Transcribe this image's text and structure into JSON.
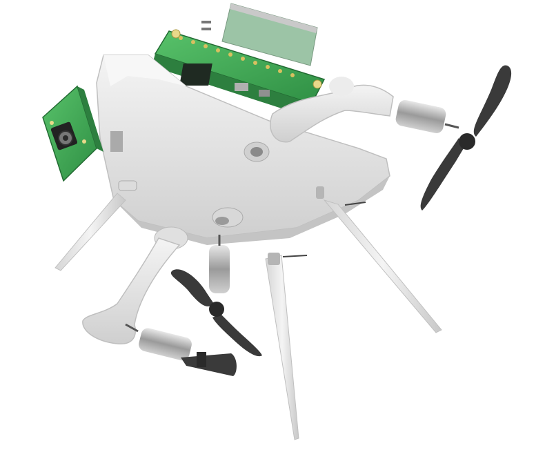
{
  "scene": {
    "subject": "exploded-drone-assembly",
    "components": [
      {
        "id": "main-body",
        "kind": "housing"
      },
      {
        "id": "pi-board",
        "kind": "circuit-board"
      },
      {
        "id": "ribbon-cable",
        "kind": "cable"
      },
      {
        "id": "camera-module",
        "kind": "circuit-board"
      },
      {
        "id": "arm-right",
        "kind": "arm"
      },
      {
        "id": "arm-left",
        "kind": "arm"
      },
      {
        "id": "motor-right",
        "kind": "motor"
      },
      {
        "id": "motor-center",
        "kind": "motor"
      },
      {
        "id": "motor-left",
        "kind": "motor"
      },
      {
        "id": "propeller-right",
        "kind": "propeller"
      },
      {
        "id": "propeller-center",
        "kind": "propeller"
      },
      {
        "id": "propeller-left",
        "kind": "propeller"
      },
      {
        "id": "leg-left",
        "kind": "leg"
      },
      {
        "id": "leg-right",
        "kind": "leg"
      },
      {
        "id": "leg-center",
        "kind": "leg"
      }
    ],
    "colors": {
      "body": "#e4e4e4",
      "body_shadow": "#c4c4c4",
      "pcb": "#3fae55",
      "pcb_dark": "#2d7f3f",
      "chip": "#1f2a22",
      "metal": "#b9b9b9",
      "propeller": "#3a3a3a",
      "ribbon": "#8fb89a"
    }
  }
}
